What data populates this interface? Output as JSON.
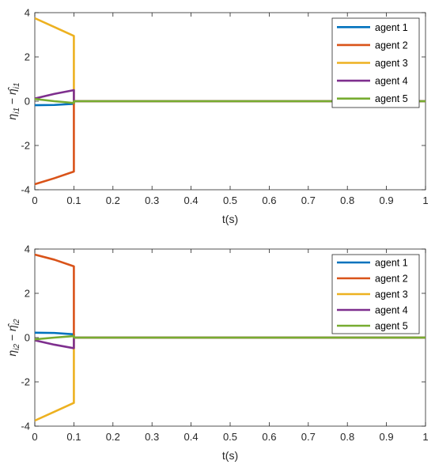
{
  "chart_data": [
    {
      "type": "line",
      "title": "",
      "xlabel": "t(s)",
      "ylabel": "η_i1 − η̂_i1",
      "ylabel_parts": {
        "base": "η",
        "sub": "i1",
        "sep": " − ",
        "hat": "η̂",
        "sub2": "i1"
      },
      "xlim": [
        0,
        1
      ],
      "ylim": [
        -4,
        4
      ],
      "xticks": [
        0,
        0.1,
        0.2,
        0.3,
        0.4,
        0.5,
        0.6,
        0.7,
        0.8,
        0.9,
        1
      ],
      "xtick_labels": [
        "0",
        "0.1",
        "0.2",
        "0.3",
        "0.4",
        "0.5",
        "0.6",
        "0.7",
        "0.8",
        "0.9",
        "1"
      ],
      "yticks": [
        -4,
        -2,
        0,
        2,
        4
      ],
      "ytick_labels": [
        "-4",
        "-2",
        "0",
        "2",
        "4"
      ],
      "grid": false,
      "legend": "top-right",
      "series": [
        {
          "name": "agent 1",
          "color": "#0072BD",
          "x": [
            0,
            0.05,
            0.1,
            0.1,
            1
          ],
          "y": [
            -0.18,
            -0.17,
            -0.12,
            0,
            0
          ]
        },
        {
          "name": "agent 2",
          "color": "#D95319",
          "x": [
            0,
            0.05,
            0.1,
            0.1,
            1
          ],
          "y": [
            -3.75,
            -3.48,
            -3.18,
            0,
            0
          ]
        },
        {
          "name": "agent 3",
          "color": "#EDB120",
          "x": [
            0,
            0.05,
            0.1,
            0.1,
            1
          ],
          "y": [
            3.75,
            3.35,
            2.95,
            0,
            0
          ]
        },
        {
          "name": "agent 4",
          "color": "#7E2F8E",
          "x": [
            0,
            0.05,
            0.1,
            0.1,
            1
          ],
          "y": [
            0.12,
            0.33,
            0.5,
            0,
            0
          ]
        },
        {
          "name": "agent 5",
          "color": "#77AC30",
          "x": [
            0,
            0.05,
            0.1,
            0.1,
            1
          ],
          "y": [
            0.1,
            0.0,
            -0.08,
            0,
            0
          ]
        }
      ]
    },
    {
      "type": "line",
      "title": "",
      "xlabel": "t(s)",
      "ylabel": "η_i2 − η̂_i2",
      "ylabel_parts": {
        "base": "η",
        "sub": "i2",
        "sep": " − ",
        "hat": "η̂",
        "sub2": "i2"
      },
      "xlim": [
        0,
        1
      ],
      "ylim": [
        -4,
        4
      ],
      "xticks": [
        0,
        0.1,
        0.2,
        0.3,
        0.4,
        0.5,
        0.6,
        0.7,
        0.8,
        0.9,
        1
      ],
      "xtick_labels": [
        "0",
        "0.1",
        "0.2",
        "0.3",
        "0.4",
        "0.5",
        "0.6",
        "0.7",
        "0.8",
        "0.9",
        "1"
      ],
      "yticks": [
        -4,
        -2,
        0,
        2,
        4
      ],
      "ytick_labels": [
        "-4",
        "-2",
        "0",
        "2",
        "4"
      ],
      "grid": false,
      "legend": "top-right",
      "series": [
        {
          "name": "agent 1",
          "color": "#0072BD",
          "x": [
            0,
            0.05,
            0.1,
            0.1,
            1
          ],
          "y": [
            0.22,
            0.21,
            0.15,
            0,
            0
          ]
        },
        {
          "name": "agent 2",
          "color": "#D95319",
          "x": [
            0,
            0.05,
            0.1,
            0.1,
            1
          ],
          "y": [
            3.75,
            3.52,
            3.22,
            0,
            0
          ]
        },
        {
          "name": "agent 3",
          "color": "#EDB120",
          "x": [
            0,
            0.05,
            0.1,
            0.1,
            1
          ],
          "y": [
            -3.75,
            -3.35,
            -2.95,
            0,
            0
          ]
        },
        {
          "name": "agent 4",
          "color": "#7E2F8E",
          "x": [
            0,
            0.05,
            0.1,
            0.1,
            1
          ],
          "y": [
            -0.12,
            -0.32,
            -0.48,
            0,
            0
          ]
        },
        {
          "name": "agent 5",
          "color": "#77AC30",
          "x": [
            0,
            0.05,
            0.1,
            0.1,
            1
          ],
          "y": [
            -0.08,
            0.0,
            0.07,
            0,
            0
          ]
        }
      ]
    }
  ]
}
